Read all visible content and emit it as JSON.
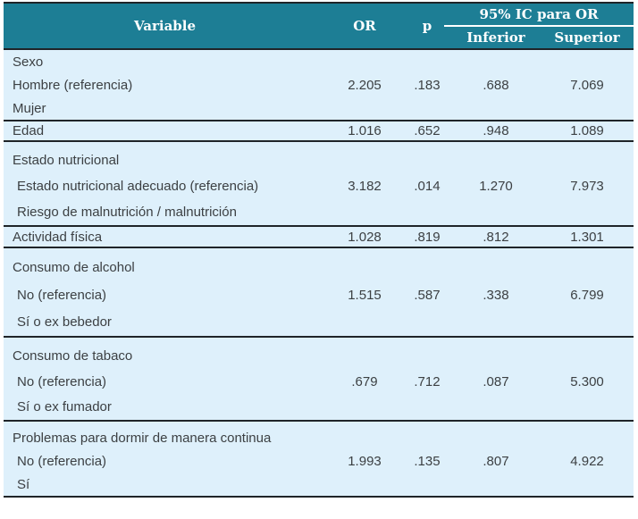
{
  "colors": {
    "header_bg": "#1d7e95",
    "body_bg": "#def0fb",
    "rule": "#1f2428",
    "header_text": "#ffffff",
    "body_text": "#3c4043"
  },
  "header": {
    "variable": "Variable",
    "or": "OR",
    "p": "p",
    "ci_group": "95% IC para OR",
    "ci_lower": "Inferior",
    "ci_upper": "Superior"
  },
  "sections": [
    {
      "rows": [
        {
          "label": "Sexo"
        },
        {
          "label": "Hombre (referencia)",
          "or": "2.205",
          "p": ".183",
          "lower": ".688",
          "upper": "7.069"
        },
        {
          "label": "Mujer"
        }
      ]
    },
    {
      "rows": [
        {
          "label": "Edad",
          "or": "1.016",
          "p": ".652",
          "lower": ".948",
          "upper": "1.089"
        }
      ]
    },
    {
      "rows": [
        {
          "label": "Estado nutricional"
        },
        {
          "label": "Estado nutricional adecuado (referencia)",
          "or": "3.182",
          "p": ".014",
          "lower": "1.270",
          "upper": "7.973"
        },
        {
          "label": "Riesgo de malnutrición / malnutrición"
        }
      ]
    },
    {
      "rows": [
        {
          "label": "Actividad física",
          "or": "1.028",
          "p": ".819",
          "lower": ".812",
          "upper": "1.301"
        }
      ]
    },
    {
      "rows": [
        {
          "label": "Consumo de alcohol"
        },
        {
          "label": "No (referencia)",
          "or": "1.515",
          "p": ".587",
          "lower": ".338",
          "upper": "6.799"
        },
        {
          "label": "Sí o ex bebedor"
        }
      ]
    },
    {
      "rows": [
        {
          "label": "Consumo de tabaco"
        },
        {
          "label": "No (referencia)",
          "or": ".679",
          "p": ".712",
          "lower": ".087",
          "upper": "5.300"
        },
        {
          "label": "Sí o ex fumador"
        }
      ]
    },
    {
      "rows": [
        {
          "label": "Problemas para dormir de manera continua"
        },
        {
          "label": "No (referencia)",
          "or": "1.993",
          "p": ".135",
          "lower": ".807",
          "upper": "4.922"
        },
        {
          "label": "Sí"
        }
      ]
    }
  ]
}
